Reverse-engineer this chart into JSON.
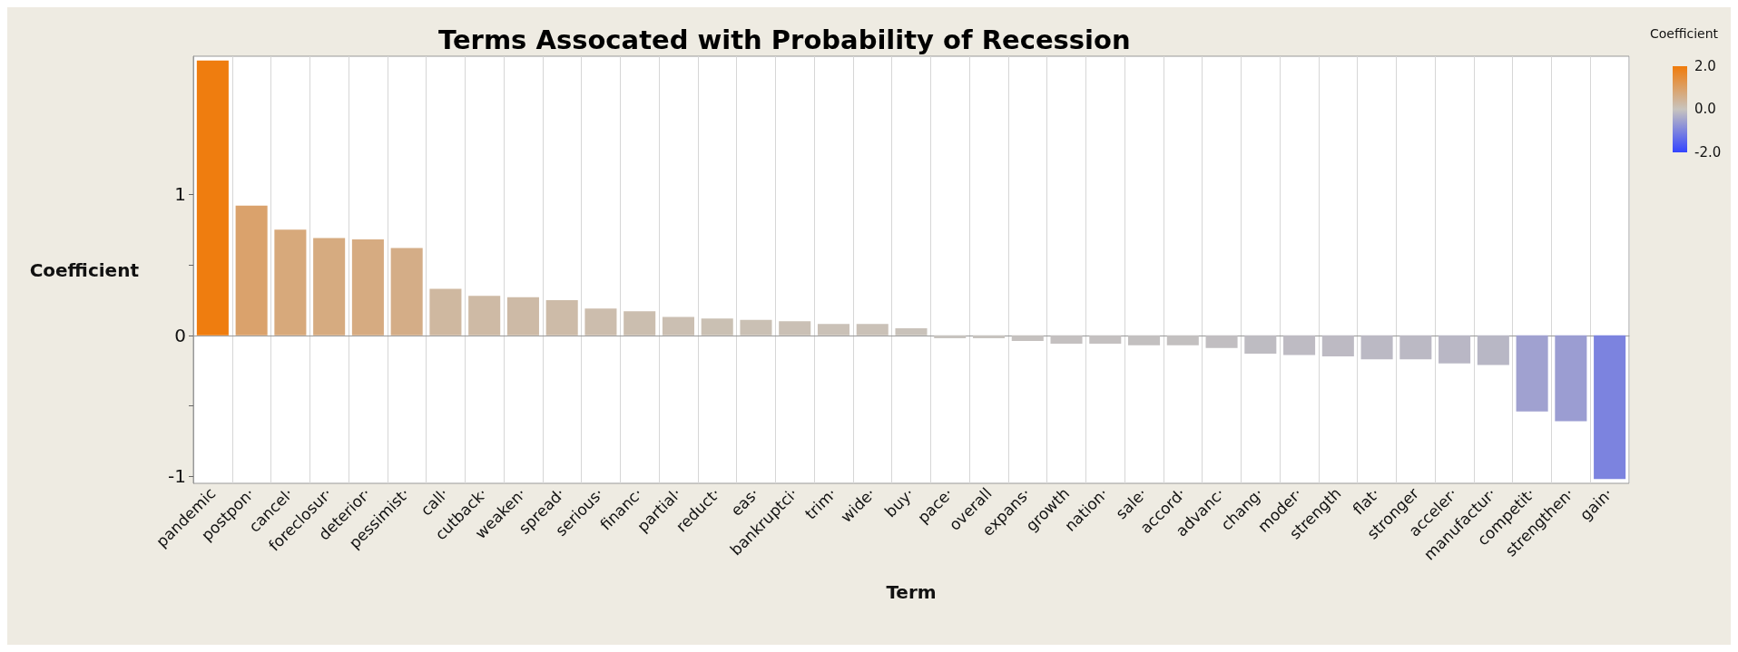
{
  "chart_data": {
    "type": "bar",
    "title": "Terms Assocated with Probability of Recession",
    "xlabel": "Term",
    "ylabel": "Coefficient",
    "clabel": "Coefficient",
    "categories": [
      "pandemic",
      "postpon·",
      "cancel·",
      "foreclosur·",
      "deterior·",
      "pessimist·",
      "call·",
      "cutback·",
      "weaken·",
      "spread·",
      "serious·",
      "financ·",
      "partial·",
      "reduct·",
      "eas·",
      "bankruptci·",
      "trim·",
      "wide·",
      "buy·",
      "pace·",
      "overall",
      "expans·",
      "growth",
      "nation·",
      "sale·",
      "accord·",
      "advanc·",
      "chang·",
      "moder·",
      "strength",
      "flat·",
      "stronger",
      "acceler·",
      "manufactur·",
      "competit·",
      "strengthen·",
      "gain·"
    ],
    "values": [
      1.95,
      0.92,
      0.75,
      0.69,
      0.68,
      0.62,
      0.33,
      0.28,
      0.27,
      0.25,
      0.19,
      0.17,
      0.13,
      0.12,
      0.11,
      0.1,
      0.08,
      0.08,
      0.05,
      -0.02,
      -0.02,
      -0.04,
      -0.06,
      -0.06,
      -0.07,
      -0.07,
      -0.09,
      -0.13,
      -0.14,
      -0.15,
      -0.17,
      -0.17,
      -0.2,
      -0.21,
      -0.54,
      -0.61,
      -1.02
    ],
    "ylim": [
      -1.05,
      1.98
    ],
    "yticks": [
      -1,
      {
        "value": -0.5,
        "label": null
      },
      0,
      {
        "value": 0.5,
        "label": null
      },
      1
    ],
    "clim": [
      -2,
      2
    ],
    "cticks": [
      {
        "value": -2,
        "label": "-2.0"
      },
      {
        "value": 0,
        "label": "0.0"
      },
      {
        "value": 2,
        "label": "2.0"
      }
    ],
    "grid": "x"
  }
}
